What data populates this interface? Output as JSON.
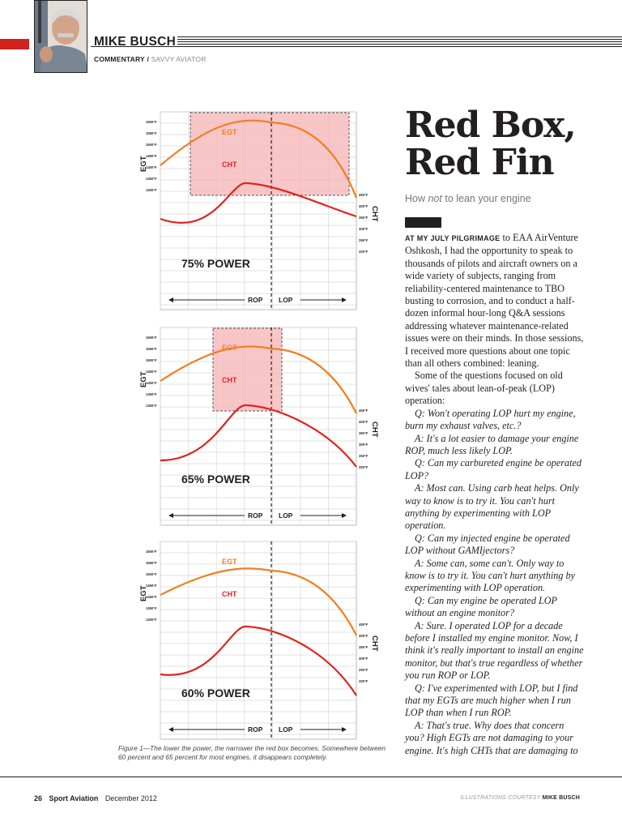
{
  "header": {
    "author": "MIKE BUSCH",
    "section": "COMMENTARY",
    "separator": "/",
    "column": "SAVVY AVIATOR"
  },
  "article": {
    "title_line1": "Red Box,",
    "title_line2": "Red Fin",
    "deck_before": "How ",
    "deck_emph": "not",
    "deck_after": " to lean your engine",
    "lead_runin": "AT MY JULY PILGRIMAGE",
    "p1": " to EAA AirVenture Oshkosh, I had the opportunity to speak to thousands of pilots and aircraft owners on a wide variety of subjects, ranging from reliability-centered maintenance to TBO busting to corrosion, and to conduct a half-dozen informal hour-long Q&A sessions addressing whatever maintenance-related issues were on their minds. In those sessions, I received more questions about one topic than all others combined: leaning.",
    "p2": "Some of the questions focused on old wives' tales about lean-of-peak (LOP) operation:",
    "qa": [
      "Q: Won't operating LOP hurt my engine, burn my exhaust valves, etc.?",
      "A: It's a lot easier to damage your engine ROP, much less likely LOP.",
      "Q: Can my carbureted engine be operated LOP?",
      "A: Most can. Using carb heat helps. Only way to know is to try it. You can't hurt anything by experimenting with LOP operation.",
      "Q: Can my injected engine be operated LOP without GAMIjectors?",
      "A: Some can, some can't. Only way to know is to try it. You can't hurt anything by experimenting with LOP operation.",
      "Q: Can my engine be operated LOP without an engine monitor?",
      "A: Sure. I operated LOP for a decade before I installed my engine monitor. Now, I think it's really important to install an engine monitor, but that's true regardless of whether you run ROP or LOP.",
      "Q: I've experimented with LOP, but I find that my EGTs are much higher when I run LOP than when I run ROP.",
      "A: That's true. Why does that concern you? High EGTs are not damaging to your engine. It's high CHTs that are damaging to"
    ]
  },
  "figure": {
    "caption": "Figure 1—The lower the power, the narrower the red box becomes. Somewhere between 60 percent and 65 percent for most engines, it disappears completely."
  },
  "chart_data": [
    {
      "type": "line",
      "title": "75% POWER",
      "ylabel": "EGT",
      "y2label": "CHT",
      "x_labels": [
        "ROP",
        "LOP"
      ],
      "series": [
        {
          "name": "EGT"
        },
        {
          "name": "CHT"
        }
      ],
      "egt_ticks": [
        "1600°F",
        "1550°F",
        "1500°F",
        "1450°F",
        "1400°F",
        "1350°F",
        "1300°F"
      ],
      "cht_ticks": [
        "450°F",
        "400°F",
        "350°F",
        "300°F",
        "250°F",
        "200°F"
      ]
    },
    {
      "type": "line",
      "title": "65% POWER",
      "ylabel": "EGT",
      "y2label": "CHT",
      "x_labels": [
        "ROP",
        "LOP"
      ],
      "series": [
        {
          "name": "EGT"
        },
        {
          "name": "CHT"
        }
      ],
      "egt_ticks": [
        "1600°F",
        "1550°F",
        "1500°F",
        "1450°F",
        "1400°F",
        "1350°F",
        "1300°F"
      ],
      "cht_ticks": [
        "450°F",
        "400°F",
        "350°F",
        "300°F",
        "250°F",
        "200°F"
      ]
    },
    {
      "type": "line",
      "title": "60% POWER",
      "ylabel": "EGT",
      "y2label": "CHT",
      "x_labels": [
        "ROP",
        "LOP"
      ],
      "series": [
        {
          "name": "EGT"
        },
        {
          "name": "CHT"
        }
      ],
      "egt_ticks": [
        "1600°F",
        "1550°F",
        "1500°F",
        "1450°F",
        "1400°F",
        "1350°F",
        "1300°F"
      ],
      "cht_ticks": [
        "450°F",
        "400°F",
        "350°F",
        "300°F",
        "250°F",
        "200°F"
      ]
    }
  ],
  "footer": {
    "page": "26",
    "magazine": "Sport Aviation",
    "issue": "December 2012",
    "credit_label": "ILLUSTRATIONS COURTESY",
    "credit_name": "MIKE BUSCH"
  },
  "colors": {
    "egt": "#f07f22",
    "cht": "#e3221e",
    "redbox": "#f7b3b6",
    "accent": "#d0231e"
  }
}
